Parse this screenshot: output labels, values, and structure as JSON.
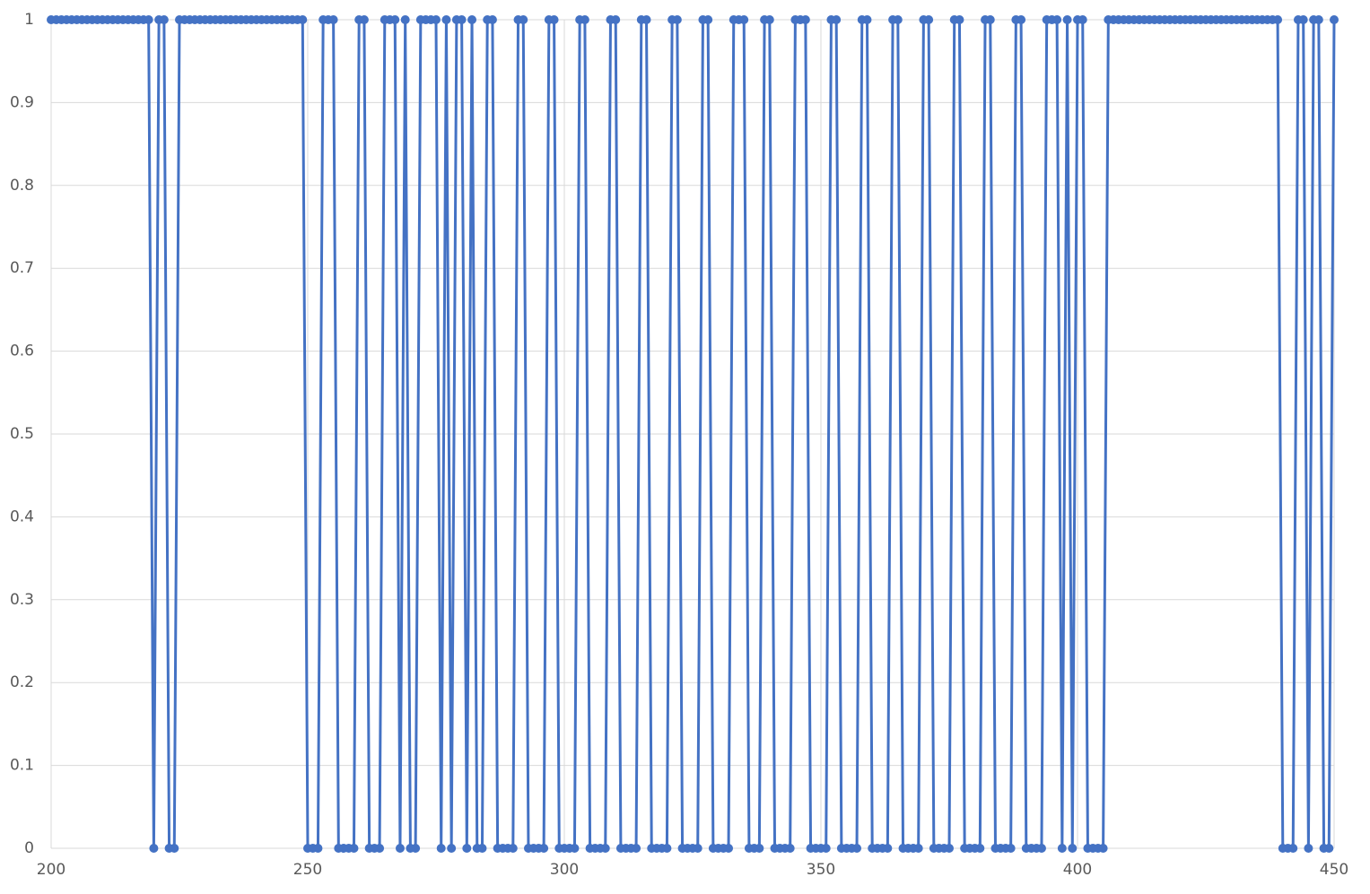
{
  "chart_data": {
    "type": "line",
    "x": [
      200,
      201,
      202,
      203,
      204,
      205,
      206,
      207,
      208,
      209,
      210,
      211,
      212,
      213,
      214,
      215,
      216,
      217,
      218,
      219,
      220,
      221,
      222,
      223,
      224,
      225,
      226,
      227,
      228,
      229,
      230,
      231,
      232,
      233,
      234,
      235,
      236,
      237,
      238,
      239,
      240,
      241,
      242,
      243,
      244,
      245,
      246,
      247,
      248,
      249,
      250,
      251,
      252,
      253,
      254,
      255,
      256,
      257,
      258,
      259,
      260,
      261,
      262,
      263,
      264,
      265,
      266,
      267,
      268,
      269,
      270,
      271,
      272,
      273,
      274,
      275,
      276,
      277,
      278,
      279,
      280,
      281,
      282,
      283,
      284,
      285,
      286,
      287,
      288,
      289,
      290,
      291,
      292,
      293,
      294,
      295,
      296,
      297,
      298,
      299,
      300,
      301,
      302,
      303,
      304,
      305,
      306,
      307,
      308,
      309,
      310,
      311,
      312,
      313,
      314,
      315,
      316,
      317,
      318,
      319,
      320,
      321,
      322,
      323,
      324,
      325,
      326,
      327,
      328,
      329,
      330,
      331,
      332,
      333,
      334,
      335,
      336,
      337,
      338,
      339,
      340,
      341,
      342,
      343,
      344,
      345,
      346,
      347,
      348,
      349,
      350,
      351,
      352,
      353,
      354,
      355,
      356,
      357,
      358,
      359,
      360,
      361,
      362,
      363,
      364,
      365,
      366,
      367,
      368,
      369,
      370,
      371,
      372,
      373,
      374,
      375,
      376,
      377,
      378,
      379,
      380,
      381,
      382,
      383,
      384,
      385,
      386,
      387,
      388,
      389,
      390,
      391,
      392,
      393,
      394,
      395,
      396,
      397,
      398,
      399,
      400,
      401,
      402,
      403,
      404,
      405,
      406,
      407,
      408,
      409,
      410,
      411,
      412,
      413,
      414,
      415,
      416,
      417,
      418,
      419,
      420,
      421,
      422,
      423,
      424,
      425,
      426,
      427,
      428,
      429,
      430,
      431,
      432,
      433,
      434,
      435,
      436,
      437,
      438,
      439,
      440,
      441,
      442,
      443,
      444,
      445,
      446,
      447,
      448,
      449,
      450
    ],
    "series": [
      {
        "color": "#4472c4",
        "values": [
          1,
          1,
          1,
          1,
          1,
          1,
          1,
          1,
          1,
          1,
          1,
          1,
          1,
          1,
          1,
          1,
          1,
          1,
          1,
          1,
          0,
          1,
          1,
          0,
          0,
          1,
          1,
          1,
          1,
          1,
          1,
          1,
          1,
          1,
          1,
          1,
          1,
          1,
          1,
          1,
          1,
          1,
          1,
          1,
          1,
          1,
          1,
          1,
          1,
          1,
          0,
          0,
          0,
          1,
          1,
          1,
          0,
          0,
          0,
          0,
          1,
          1,
          0,
          0,
          0,
          1,
          1,
          1,
          0,
          1,
          0,
          0,
          1,
          1,
          1,
          1,
          0,
          1,
          0,
          1,
          1,
          0,
          1,
          0,
          0,
          1,
          1,
          0,
          0,
          0,
          0,
          1,
          1,
          0,
          0,
          0,
          0,
          1,
          1,
          0,
          0,
          0,
          0,
          1,
          1,
          0,
          0,
          0,
          0,
          1,
          1,
          0,
          0,
          0,
          0,
          1,
          1,
          0,
          0,
          0,
          0,
          1,
          1,
          0,
          0,
          0,
          0,
          1,
          1,
          0,
          0,
          0,
          0,
          1,
          1,
          1,
          0,
          0,
          0,
          1,
          1,
          0,
          0,
          0,
          0,
          1,
          1,
          1,
          0,
          0,
          0,
          0,
          1,
          1,
          0,
          0,
          0,
          0,
          1,
          1,
          0,
          0,
          0,
          0,
          1,
          1,
          0,
          0,
          0,
          0,
          1,
          1,
          0,
          0,
          0,
          0,
          1,
          1,
          0,
          0,
          0,
          0,
          1,
          1,
          0,
          0,
          0,
          0,
          1,
          1,
          0,
          0,
          0,
          0,
          1,
          1,
          1,
          0,
          1,
          0,
          1,
          1,
          0,
          0,
          0,
          0,
          1,
          1,
          1,
          1,
          1,
          1,
          1,
          1,
          1,
          1,
          1,
          1,
          1,
          1,
          1,
          1,
          1,
          1,
          1,
          1,
          1,
          1,
          1,
          1,
          1,
          1,
          1,
          1,
          1,
          1,
          1,
          1,
          1,
          1,
          0,
          0,
          0,
          1,
          1,
          0,
          1,
          1,
          0,
          0,
          1
        ]
      }
    ],
    "xlim": [
      200,
      450
    ],
    "xticks": [
      200,
      250,
      300,
      350,
      400,
      450
    ],
    "ylim": [
      0,
      1
    ],
    "yticks": [
      0,
      0.1,
      0.2,
      0.3,
      0.4,
      0.5,
      0.6,
      0.7,
      0.8,
      0.9,
      1
    ],
    "grid": true
  }
}
